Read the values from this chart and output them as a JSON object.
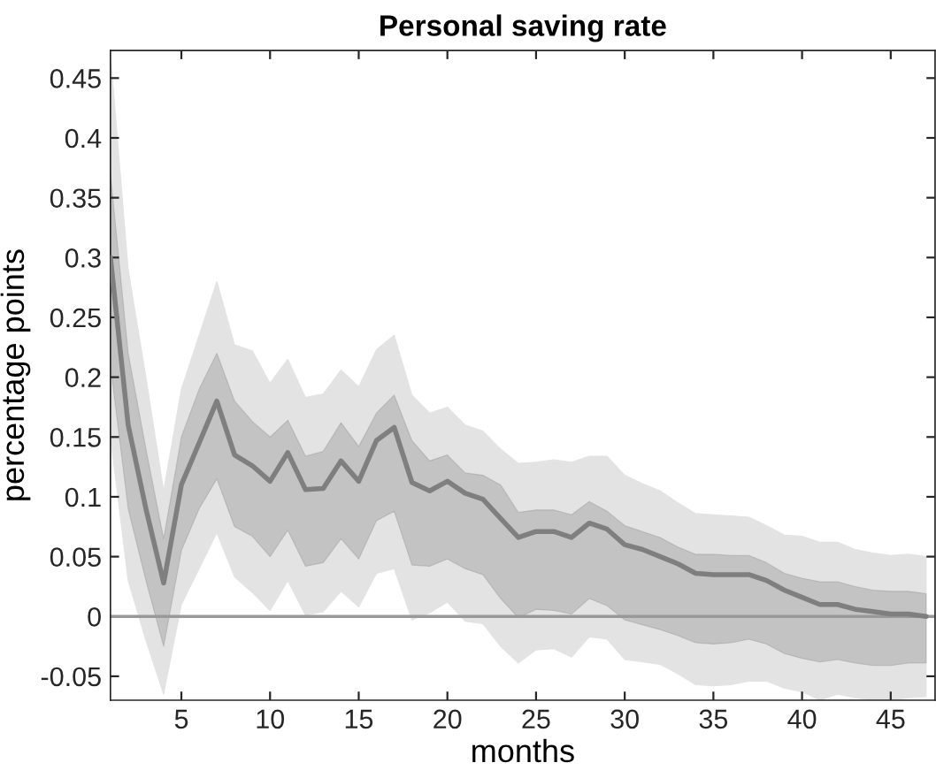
{
  "chart_data": {
    "type": "line",
    "title": "Personal saving rate",
    "xlabel": "months",
    "ylabel": "percentage points",
    "x": [
      1,
      2,
      3,
      4,
      5,
      6,
      7,
      8,
      9,
      10,
      11,
      12,
      13,
      14,
      15,
      16,
      17,
      18,
      19,
      20,
      21,
      22,
      23,
      24,
      25,
      26,
      27,
      28,
      29,
      30,
      31,
      32,
      33,
      34,
      35,
      36,
      37,
      38,
      39,
      40,
      41,
      42,
      43,
      44,
      45,
      46,
      47
    ],
    "series": [
      {
        "color": "#7f7f7f",
        "lower": [
          0.21,
          0.09,
          0.03,
          -0.025,
          0.055,
          0.09,
          0.115,
          0.075,
          0.067,
          0.05,
          0.072,
          0.042,
          0.045,
          0.065,
          0.048,
          0.08,
          0.088,
          0.043,
          0.042,
          0.048,
          0.04,
          0.035,
          0.015,
          -0.001,
          0.006,
          0.005,
          0.002,
          0.015,
          0.009,
          -0.003,
          -0.007,
          -0.011,
          -0.016,
          -0.022,
          -0.023,
          -0.022,
          -0.019,
          -0.023,
          -0.031,
          -0.035,
          -0.038,
          -0.036,
          -0.039,
          -0.041,
          -0.041,
          -0.039,
          -0.039
        ],
        "upper": [
          0.37,
          0.22,
          0.14,
          0.065,
          0.15,
          0.19,
          0.22,
          0.18,
          0.163,
          0.15,
          0.164,
          0.134,
          0.138,
          0.162,
          0.142,
          0.17,
          0.185,
          0.147,
          0.13,
          0.135,
          0.12,
          0.118,
          0.11,
          0.087,
          0.089,
          0.089,
          0.085,
          0.096,
          0.088,
          0.076,
          0.071,
          0.066,
          0.058,
          0.052,
          0.052,
          0.051,
          0.051,
          0.045,
          0.036,
          0.032,
          0.029,
          0.029,
          0.025,
          0.022,
          0.021,
          0.021,
          0.019
        ],
        "values": [
          0.3,
          0.16,
          0.09,
          0.028,
          0.11,
          0.145,
          0.18,
          0.135,
          0.126,
          0.113,
          0.137,
          0.106,
          0.107,
          0.13,
          0.113,
          0.147,
          0.158,
          0.112,
          0.105,
          0.113,
          0.103,
          0.098,
          0.082,
          0.066,
          0.071,
          0.071,
          0.066,
          0.078,
          0.073,
          0.06,
          0.056,
          0.05,
          0.044,
          0.036,
          0.035,
          0.035,
          0.035,
          0.03,
          0.022,
          0.016,
          0.01,
          0.01,
          0.006,
          0.004,
          0.002,
          0.002,
          0.0
        ]
      },
      {
        "color": "#e3e3e3",
        "lower": [
          0.15,
          0.03,
          -0.02,
          -0.065,
          0.01,
          0.04,
          0.07,
          0.033,
          0.02,
          0.005,
          0.03,
          0.001,
          0.004,
          0.021,
          0.008,
          0.036,
          0.04,
          -0.003,
          0.003,
          0.012,
          -0.004,
          -0.006,
          -0.025,
          -0.039,
          -0.028,
          -0.027,
          -0.034,
          -0.017,
          -0.019,
          -0.036,
          -0.038,
          -0.04,
          -0.048,
          -0.057,
          -0.058,
          -0.057,
          -0.054,
          -0.054,
          -0.06,
          -0.063,
          -0.07,
          -0.065,
          -0.068,
          -0.07,
          -0.07,
          -0.068,
          -0.067
        ],
        "upper": [
          0.47,
          0.29,
          0.2,
          0.105,
          0.19,
          0.235,
          0.28,
          0.227,
          0.222,
          0.195,
          0.215,
          0.183,
          0.186,
          0.206,
          0.192,
          0.223,
          0.235,
          0.185,
          0.17,
          0.175,
          0.16,
          0.155,
          0.14,
          0.128,
          0.129,
          0.131,
          0.129,
          0.134,
          0.134,
          0.118,
          0.111,
          0.105,
          0.095,
          0.086,
          0.085,
          0.084,
          0.083,
          0.076,
          0.068,
          0.067,
          0.062,
          0.062,
          0.056,
          0.053,
          0.051,
          0.052,
          0.05
        ],
        "values": [
          null,
          null,
          null,
          null,
          null,
          null,
          null,
          null,
          null,
          null,
          null,
          null,
          null,
          null,
          null,
          null,
          null,
          null,
          null,
          null,
          null,
          null,
          null,
          null,
          null,
          null,
          null,
          null,
          null,
          null,
          null,
          null,
          null,
          null,
          null,
          null,
          null,
          null,
          null,
          null,
          null,
          null,
          null,
          null,
          null,
          null,
          null
        ]
      }
    ],
    "xlim": [
      1,
      47.5
    ],
    "ylim": [
      -0.07,
      0.473
    ],
    "xticks": [
      5,
      10,
      15,
      20,
      25,
      30,
      35,
      40,
      45
    ],
    "yticks": [
      {
        "value": -0.05,
        "label": "-0.05"
      },
      0,
      0.05,
      0.1,
      0.15,
      0.2,
      0.25,
      0.3,
      0.35,
      0.4,
      0.45
    ],
    "ref_lines": [
      {
        "axis": "y",
        "value": 0,
        "color": "#999999"
      }
    ],
    "grid": false,
    "legend": false
  }
}
